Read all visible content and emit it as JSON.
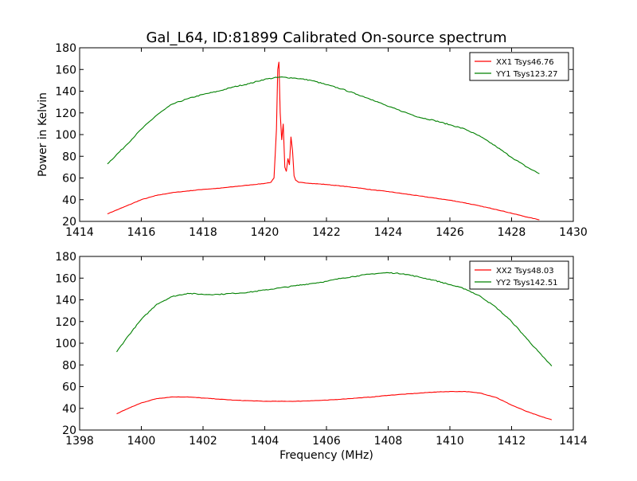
{
  "title": "Gal_L64, ID:81899 Calibrated On-source spectrum",
  "chart_data": [
    {
      "type": "line",
      "title": "Gal_L64, ID:81899 Calibrated On-source spectrum",
      "xlabel": "",
      "ylabel": "Power in Kelvin",
      "xlim": [
        1414,
        1430
      ],
      "ylim": [
        20,
        180
      ],
      "xticks": [
        "1414",
        "1416",
        "1418",
        "1420",
        "1422",
        "1424",
        "1426",
        "1428",
        "1430"
      ],
      "yticks": [
        "20",
        "40",
        "60",
        "80",
        "100",
        "120",
        "140",
        "160",
        "180"
      ],
      "grid": false,
      "legend_position": "top-right",
      "series": [
        {
          "name": "XX1 Tsys46.76",
          "color": "#ff0000",
          "x": [
            1414.9,
            1415.5,
            1416.0,
            1416.5,
            1417.0,
            1417.5,
            1418.0,
            1418.5,
            1419.0,
            1419.5,
            1420.0,
            1420.2,
            1420.3,
            1420.38,
            1420.42,
            1420.46,
            1420.5,
            1420.55,
            1420.6,
            1420.65,
            1420.7,
            1420.75,
            1420.8,
            1420.85,
            1420.9,
            1420.95,
            1421.0,
            1421.1,
            1421.5,
            1422.0,
            1422.5,
            1423.0,
            1423.5,
            1424.0,
            1424.5,
            1425.0,
            1425.5,
            1426.0,
            1426.5,
            1427.0,
            1427.5,
            1428.0,
            1428.5,
            1428.9
          ],
          "y": [
            27,
            34,
            40,
            44,
            46.5,
            48,
            49.5,
            50.5,
            52,
            53.5,
            55,
            56,
            60,
            105,
            160,
            167,
            120,
            95,
            110,
            70,
            66,
            78,
            72,
            98,
            85,
            62,
            58,
            56,
            55,
            54,
            52.5,
            51,
            49,
            47.5,
            45.5,
            43.5,
            41.5,
            39.5,
            37,
            34,
            31,
            27.5,
            24,
            21.5
          ]
        },
        {
          "name": "YY1 Tsys123.27",
          "color": "#008000",
          "x": [
            1414.9,
            1415.5,
            1416.0,
            1416.5,
            1417.0,
            1417.5,
            1418.0,
            1418.5,
            1419.0,
            1419.5,
            1420.0,
            1420.5,
            1421.0,
            1421.5,
            1422.0,
            1422.5,
            1423.0,
            1423.5,
            1424.0,
            1424.5,
            1425.0,
            1425.5,
            1426.0,
            1426.5,
            1427.0,
            1427.5,
            1428.0,
            1428.5,
            1428.9
          ],
          "y": [
            73,
            90,
            105,
            118,
            128,
            133,
            137,
            140,
            144,
            147,
            151,
            153,
            152,
            150,
            146,
            142,
            137,
            132,
            126,
            121,
            116,
            113,
            109,
            105,
            98,
            89,
            79,
            70,
            64
          ]
        }
      ]
    },
    {
      "type": "line",
      "title": "",
      "xlabel": "Frequency (MHz)",
      "ylabel": "",
      "xlim": [
        1398,
        1414
      ],
      "ylim": [
        20,
        180
      ],
      "xticks": [
        "1398",
        "1400",
        "1402",
        "1404",
        "1406",
        "1408",
        "1410",
        "1412",
        "1414"
      ],
      "yticks": [
        "20",
        "40",
        "60",
        "80",
        "100",
        "120",
        "140",
        "160",
        "180"
      ],
      "grid": false,
      "legend_position": "top-right",
      "series": [
        {
          "name": "XX2 Tsys48.03",
          "color": "#ff0000",
          "x": [
            1399.2,
            1399.5,
            1400.0,
            1400.5,
            1401.0,
            1401.5,
            1402.0,
            1402.5,
            1403.0,
            1403.5,
            1404.0,
            1404.5,
            1405.0,
            1405.5,
            1406.0,
            1406.5,
            1407.0,
            1407.5,
            1408.0,
            1408.5,
            1409.0,
            1409.5,
            1410.0,
            1410.5,
            1411.0,
            1411.5,
            1412.0,
            1412.5,
            1413.0,
            1413.3
          ],
          "y": [
            35,
            39,
            45,
            49,
            50.5,
            50.5,
            49.5,
            48.5,
            47.5,
            47,
            46.5,
            46.5,
            46.5,
            47,
            47.5,
            48.5,
            49.5,
            50.5,
            52,
            53,
            54,
            55,
            55.5,
            55.5,
            54,
            50,
            43,
            37,
            32,
            29.5
          ]
        },
        {
          "name": "YY2 Tsys142.51",
          "color": "#008000",
          "x": [
            1399.2,
            1399.5,
            1400.0,
            1400.5,
            1401.0,
            1401.5,
            1402.0,
            1402.5,
            1403.0,
            1403.5,
            1404.0,
            1404.5,
            1405.0,
            1405.5,
            1406.0,
            1406.5,
            1407.0,
            1407.5,
            1408.0,
            1408.5,
            1409.0,
            1409.5,
            1410.0,
            1410.5,
            1411.0,
            1411.5,
            1412.0,
            1412.5,
            1413.0,
            1413.3
          ],
          "y": [
            92,
            104,
            122,
            136,
            143,
            146,
            145,
            145,
            146,
            147,
            149,
            151,
            153,
            155,
            157,
            160,
            162,
            164,
            165,
            164,
            161,
            158,
            154,
            150,
            143,
            133,
            120,
            104,
            88,
            79
          ]
        }
      ]
    }
  ]
}
